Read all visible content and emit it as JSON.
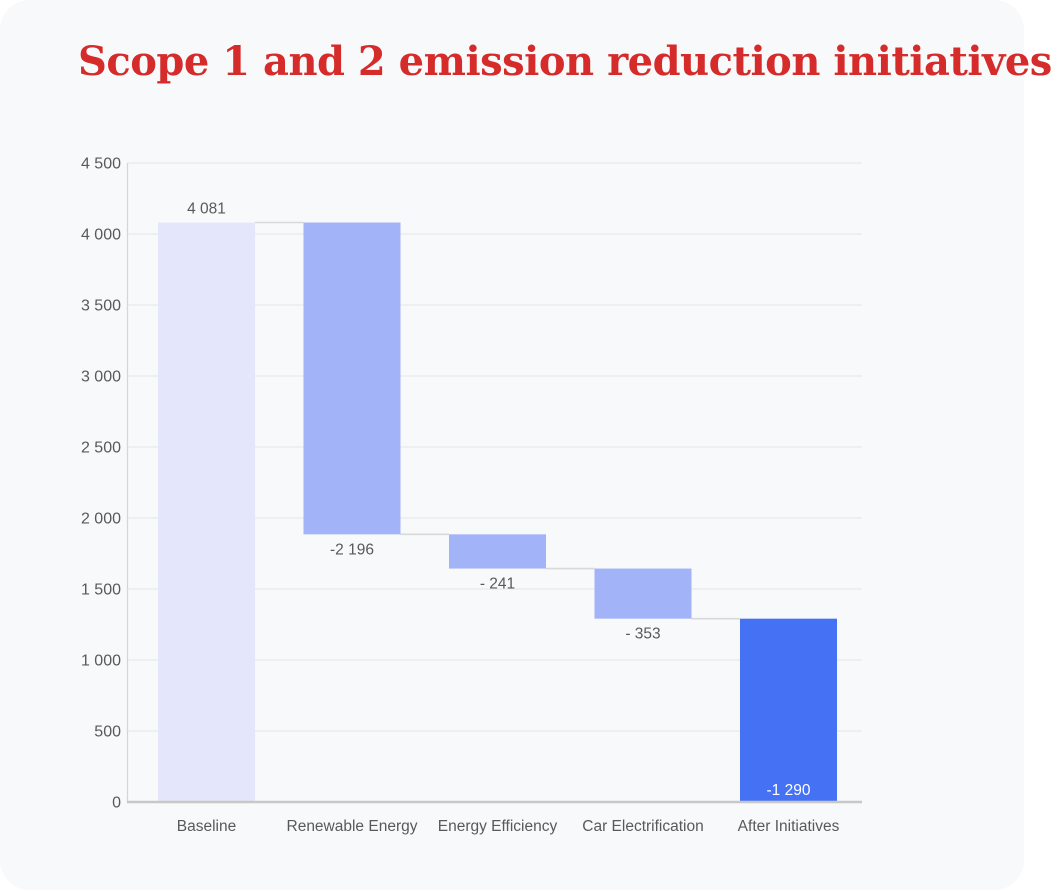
{
  "page": {
    "title": "Scope 1 and 2 emission reduction initiatives",
    "title_color": "#d62b2b",
    "card_bg": "#f8f9fa"
  },
  "chart_data": {
    "type": "bar",
    "subtype": "waterfall",
    "title": "Scope 1 and 2 emission reduction initiatives",
    "categories": [
      "Baseline",
      "Renewable Energy",
      "Energy Efficiency",
      "Car Electrification",
      "After Initiatives"
    ],
    "steps": [
      {
        "label": "Baseline",
        "value": 4081,
        "display": "4 081",
        "kind": "start",
        "color": "#e4e7fc",
        "label_position": "above",
        "label_color": "#595959"
      },
      {
        "label": "Renewable Energy",
        "value": -2196,
        "display": "-2 196",
        "kind": "decrease",
        "color": "#a2b3f8",
        "label_position": "below",
        "label_color": "#595959"
      },
      {
        "label": "Energy Efficiency",
        "value": -241,
        "display": "- 241",
        "kind": "decrease",
        "color": "#a2b3f8",
        "label_position": "below",
        "label_color": "#595959"
      },
      {
        "label": "Car Electrification",
        "value": -353,
        "display": "- 353",
        "kind": "decrease",
        "color": "#a2b3f8",
        "label_position": "below",
        "label_color": "#595959"
      },
      {
        "label": "After Initiatives",
        "value": -1290,
        "display": "-1 290",
        "kind": "total",
        "color": "#4571f5",
        "label_position": "inside-bottom",
        "label_color": "#ffffff"
      }
    ],
    "y_axis": {
      "min": 0,
      "max": 4500,
      "tick_step": 500,
      "tick_labels": [
        "0",
        "500",
        "1 000",
        "1 500",
        "2 000",
        "2 500",
        "3 000",
        "3 500",
        "4 000",
        "4 500"
      ]
    },
    "xlabel": "",
    "ylabel": "",
    "grid": true,
    "legend": false,
    "colors": {
      "gridline": "#ececec",
      "y_axis_line": "#d6d6d6",
      "x_axis_line": "#c8c8c8",
      "connector": "#d9d9d9",
      "tick_label": "#595959",
      "category_label": "#595959",
      "value_label": "#595959"
    }
  }
}
